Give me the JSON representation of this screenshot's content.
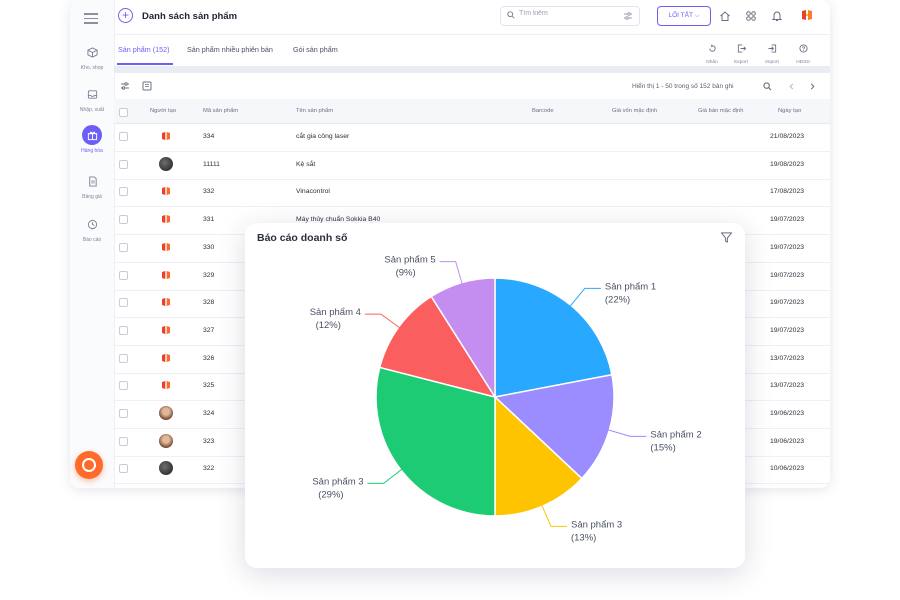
{
  "app": {
    "title": "Danh sách sản phẩm",
    "add_symbol": "+",
    "search": {
      "placeholder": "Tìm kiếm",
      "value": ""
    },
    "shortcut_label": "LỐI TẮT ⌵"
  },
  "sidebar": {
    "items": [
      {
        "label": "Kho, shop",
        "icon": "box-icon"
      },
      {
        "label": "Nhập, xuất",
        "icon": "inbox-icon"
      },
      {
        "label": "Hàng hóa",
        "icon": "gift-icon",
        "active": true
      },
      {
        "label": "Bảng giá",
        "icon": "document-icon"
      },
      {
        "label": "Báo cáo",
        "icon": "clock-icon"
      }
    ]
  },
  "tabs": [
    {
      "label": "Sản phẩm (152)",
      "active": true
    },
    {
      "label": "Sản phẩm nhiều phiên bản"
    },
    {
      "label": "Gói sản phẩm"
    }
  ],
  "actions": [
    {
      "label": "Nhân",
      "icon": "copy-icon"
    },
    {
      "label": "Export",
      "icon": "export-icon"
    },
    {
      "label": "Import",
      "icon": "import-icon"
    },
    {
      "label": "HDSD",
      "icon": "help-icon"
    }
  ],
  "table": {
    "count_text": "Hiển thị 1 - 50 trong số 152 bản ghi",
    "columns": [
      "Người tạo",
      "Mã sản phẩm",
      "Tên sản phẩm",
      "Barcode",
      "Giá vốn mặc định",
      "Giá bán mặc định",
      "Ngày tạo"
    ],
    "rows": [
      {
        "creator": "logo",
        "code": "334",
        "name": "cắt gia công laser",
        "date": "21/08/2023"
      },
      {
        "creator": "dark",
        "code": "11111",
        "name": "Kệ sắt",
        "date": "19/08/2023"
      },
      {
        "creator": "logo",
        "code": "332",
        "name": "Vinacontrol",
        "date": "17/08/2023"
      },
      {
        "creator": "logo",
        "code": "331",
        "name": "Máy thủy chuẩn Sokkia B40",
        "date": "19/07/2023"
      },
      {
        "creator": "logo",
        "code": "330",
        "name": "",
        "date": "19/07/2023"
      },
      {
        "creator": "logo",
        "code": "329",
        "name": "",
        "date": "19/07/2023"
      },
      {
        "creator": "logo",
        "code": "328",
        "name": "",
        "date": "19/07/2023"
      },
      {
        "creator": "logo",
        "code": "327",
        "name": "",
        "date": "19/07/2023"
      },
      {
        "creator": "logo",
        "code": "326",
        "name": "",
        "date": "13/07/2023"
      },
      {
        "creator": "logo",
        "code": "325",
        "name": "",
        "extra": "0",
        "date": "13/07/2023"
      },
      {
        "creator": "face",
        "code": "324",
        "name": "",
        "date": "19/06/2023"
      },
      {
        "creator": "face",
        "code": "323",
        "name": "",
        "extra": "0",
        "date": "19/06/2023"
      },
      {
        "creator": "dark",
        "code": "322",
        "name": "",
        "date": "10/06/2023"
      }
    ]
  },
  "colors": {
    "accent": "#6d5ff5",
    "brand_orange": "#ff6a2a",
    "brand_red": "#e8412c"
  },
  "report": {
    "title": "Báo cáo doanh số"
  },
  "chart_data": {
    "type": "pie",
    "title": "Báo cáo doanh số",
    "start_angle_deg": 0,
    "direction": "clockwise",
    "slices": [
      {
        "label": "Sản phẩm 1",
        "value": 22,
        "pct_text": "(22%)",
        "color": "#29a8ff"
      },
      {
        "label": "Sản phẩm 2",
        "value": 15,
        "pct_text": "(15%)",
        "color": "#9b8cff"
      },
      {
        "label": "Sản phẩm 3",
        "value": 13,
        "pct_text": "(13%)",
        "color": "#ffc400"
      },
      {
        "label": "Sản phẩm 3",
        "value": 29,
        "pct_text": "(29%)",
        "color": "#1ecb75"
      },
      {
        "label": "Sản phẩm 4",
        "value": 12,
        "pct_text": "(12%)",
        "color": "#fb5e5e"
      },
      {
        "label": "Sản phẩm 5",
        "value": 9,
        "pct_text": "(9%)",
        "color": "#c48df0"
      }
    ]
  }
}
